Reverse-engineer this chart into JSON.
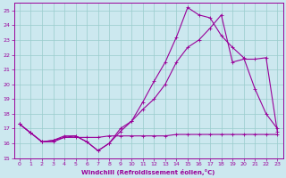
{
  "bg_color": "#cce8ef",
  "line_color": "#990099",
  "grid_color": "#99cccc",
  "xlabel": "Windchill (Refroidissement éolien,°C)",
  "xlim": [
    -0.5,
    23.5
  ],
  "ylim": [
    15,
    25.5
  ],
  "yticks": [
    15,
    16,
    17,
    18,
    19,
    20,
    21,
    22,
    23,
    24,
    25
  ],
  "xticks": [
    0,
    1,
    2,
    3,
    4,
    5,
    6,
    7,
    8,
    9,
    10,
    11,
    12,
    13,
    14,
    15,
    16,
    17,
    18,
    19,
    20,
    21,
    22,
    23
  ],
  "line1_x": [
    0,
    1,
    2,
    3,
    4,
    5,
    6,
    7,
    8,
    9,
    10,
    11,
    12,
    13,
    14,
    15,
    16,
    17,
    18,
    19,
    20,
    21,
    22,
    23
  ],
  "line1_y": [
    17.3,
    16.7,
    16.1,
    16.1,
    16.4,
    16.4,
    16.4,
    16.4,
    16.5,
    16.5,
    16.5,
    16.5,
    16.5,
    16.5,
    16.6,
    16.6,
    16.6,
    16.6,
    16.6,
    16.6,
    16.6,
    16.6,
    16.6,
    16.6
  ],
  "line2_x": [
    0,
    1,
    2,
    3,
    4,
    5,
    6,
    7,
    8,
    9,
    10,
    11,
    12,
    13,
    14,
    15,
    16,
    17,
    18,
    19,
    20,
    21,
    22,
    23
  ],
  "line2_y": [
    17.3,
    16.7,
    16.1,
    16.2,
    16.4,
    16.5,
    16.1,
    15.5,
    16.0,
    16.8,
    17.5,
    18.3,
    19.0,
    20.0,
    21.5,
    22.5,
    23.0,
    23.8,
    24.7,
    21.5,
    21.7,
    21.7,
    21.8,
    16.8
  ],
  "line3_x": [
    0,
    1,
    2,
    3,
    4,
    5,
    6,
    7,
    8,
    9,
    10,
    11,
    12,
    13,
    14,
    15,
    16,
    17,
    18,
    19,
    20,
    21,
    22,
    23
  ],
  "line3_y": [
    17.3,
    16.7,
    16.1,
    16.2,
    16.5,
    16.5,
    16.1,
    15.5,
    16.0,
    17.0,
    17.5,
    18.8,
    20.2,
    21.5,
    23.2,
    25.2,
    24.7,
    24.5,
    23.3,
    22.5,
    21.8,
    19.7,
    18.0,
    17.0
  ]
}
